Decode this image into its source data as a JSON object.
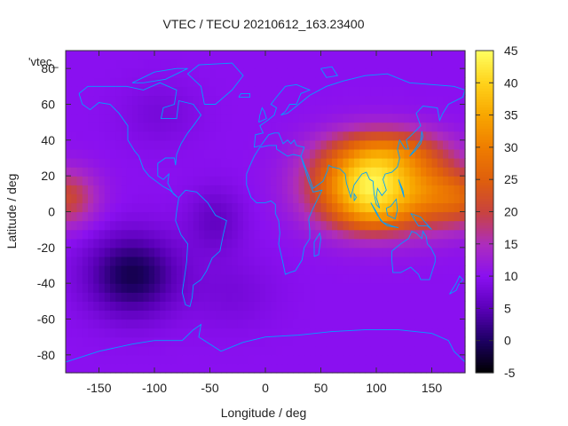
{
  "chart_data": {
    "type": "heatmap",
    "title": "VTEC / TECU 20210612_163.23400",
    "xlabel": "Longitude / deg",
    "ylabel": "Latitude / deg",
    "series_key_label": "'vtec_",
    "xlim": [
      -180,
      180
    ],
    "ylim": [
      -90,
      90
    ],
    "x_ticks": [
      -150,
      -100,
      -50,
      0,
      50,
      100,
      150
    ],
    "y_ticks": [
      -80,
      -60,
      -40,
      -20,
      0,
      20,
      40,
      60,
      80
    ],
    "colorbar": {
      "range": [
        -5,
        45
      ],
      "ticks": [
        -5,
        0,
        5,
        10,
        15,
        20,
        25,
        30,
        35,
        40,
        45
      ],
      "palette": [
        "#000000",
        "#1c0062",
        "#5a00b8",
        "#8a10f0",
        "#ad2dbd",
        "#c8433e",
        "#df5f0c",
        "#ef7d00",
        "#f8a600",
        "#ffd21a",
        "#ffff60"
      ]
    },
    "grid_step_deg": 5,
    "background_level": 10,
    "features": [
      {
        "name": "equatorial-anomaly-asia",
        "lon": 95,
        "lat": 15,
        "peak": 33,
        "lon_width": 50,
        "lat_width": 22
      },
      {
        "name": "asia-north-band",
        "lon": 115,
        "lat": 35,
        "peak": 9,
        "lon_width": 50,
        "lat_width": 12
      },
      {
        "name": "asia-east-band",
        "lon": 150,
        "lat": 10,
        "peak": 8,
        "lon_width": 30,
        "lat_width": 20
      },
      {
        "name": "asia-south-lobe",
        "lon": 100,
        "lat": -2,
        "peak": 6,
        "lon_width": 35,
        "lat_width": 10
      },
      {
        "name": "pacific-wrap-east",
        "lon": -180,
        "lat": 8,
        "peak": 11,
        "lon_width": 28,
        "lat_width": 16
      },
      {
        "name": "pacific-wrap-west",
        "lon": 180,
        "lat": 8,
        "peak": 11,
        "lon_width": 28,
        "lat_width": 16
      },
      {
        "name": "south-pacific-trough",
        "lon": -120,
        "lat": -35,
        "peak": -11,
        "lon_width": 40,
        "lat_width": 22
      },
      {
        "name": "atlantic-trough",
        "lon": -45,
        "lat": -5,
        "peak": -4,
        "lon_width": 25,
        "lat_width": 18
      },
      {
        "name": "north-america-trough",
        "lon": -95,
        "lat": 55,
        "peak": -2,
        "lon_width": 35,
        "lat_width": 18
      },
      {
        "name": "south-atlantic-trough",
        "lon": -30,
        "lat": -45,
        "peak": -2,
        "lon_width": 40,
        "lat_width": 20
      }
    ],
    "coastline_color": "#00a0ff"
  }
}
